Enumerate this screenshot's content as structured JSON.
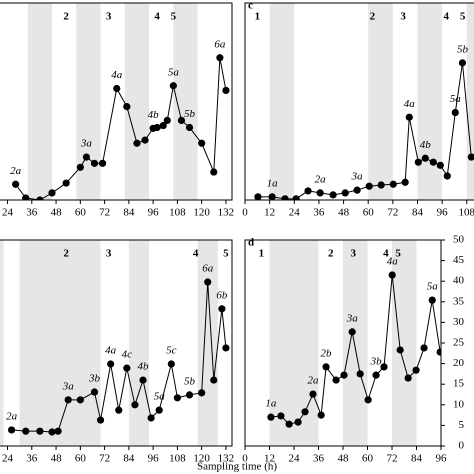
{
  "chart_data": [
    {
      "type": "line",
      "color": "#000000",
      "band_color": "#e6e6e6",
      "x": [
        28,
        33,
        40,
        46,
        53,
        60,
        63,
        67,
        71,
        78,
        83,
        88,
        92,
        96,
        98,
        101,
        103,
        106,
        110,
        114,
        120,
        126,
        129,
        132
      ],
      "values": [
        4,
        0.5,
        0,
        1.8,
        4.3,
        8.3,
        10.9,
        9.3,
        9.3,
        28.3,
        23.7,
        14.4,
        15.2,
        18.2,
        18.4,
        18.9,
        20.2,
        29,
        20.2,
        18.4,
        14.4,
        7.1,
        36.1,
        27.8
      ],
      "point_labels": [
        {
          "index": 0,
          "text": "2a"
        },
        {
          "index": 6,
          "text": "3a"
        },
        {
          "index": 9,
          "text": "4a"
        },
        {
          "index": 13,
          "text": "4b"
        },
        {
          "index": 17,
          "text": "5a"
        },
        {
          "index": 19,
          "text": "5b"
        },
        {
          "index": 22,
          "text": "6a"
        }
      ],
      "phases": [
        {
          "x": 53,
          "label": "2"
        },
        {
          "x": 74,
          "label": "3"
        },
        {
          "x": 98,
          "label": "4"
        },
        {
          "x": 106,
          "label": "5"
        }
      ],
      "bands": [
        [
          34,
          46
        ],
        [
          58,
          70
        ],
        [
          82,
          94
        ],
        [
          106,
          118
        ]
      ],
      "xlim": [
        0,
        135
      ],
      "xticks": [
        24,
        36,
        48,
        60,
        72,
        84,
        96,
        108,
        120,
        132
      ],
      "ylim": [
        0,
        50
      ]
    },
    {
      "type": "line",
      "title": "c",
      "color": "#000000",
      "band_color": "#e6e6e6",
      "x": [
        6.3,
        13.2,
        19.5,
        24.9,
        30.7,
        36.6,
        42.9,
        48.8,
        54.6,
        60.5,
        66.3,
        72.2,
        78,
        80,
        84.4,
        87.8,
        91.7,
        95.1,
        98.5,
        102.4,
        105.9,
        110.2,
        113
      ],
      "values": [
        0.8,
        0.8,
        0.3,
        0.3,
        2.3,
        1.8,
        1.3,
        1.8,
        2.5,
        3.5,
        3.8,
        4,
        4.5,
        21,
        9.6,
        10.6,
        9.6,
        8.8,
        6.1,
        22.2,
        34.8,
        10.9,
        11.4
      ],
      "point_labels": [
        {
          "index": 1,
          "text": "1a"
        },
        {
          "index": 5,
          "text": "2a"
        },
        {
          "index": 8,
          "text": "3a"
        },
        {
          "index": 13,
          "text": "4a"
        },
        {
          "index": 15,
          "text": "4b"
        },
        {
          "index": 19,
          "text": "5a"
        },
        {
          "index": 20,
          "text": "5b"
        }
      ],
      "phases": [
        {
          "x": 6,
          "label": "1"
        },
        {
          "x": 62,
          "label": "2"
        },
        {
          "x": 77,
          "label": "3"
        },
        {
          "x": 98,
          "label": "4"
        },
        {
          "x": 106,
          "label": "5"
        }
      ],
      "bands": [
        [
          12,
          24
        ],
        [
          60,
          72
        ],
        [
          84,
          96
        ],
        [
          108,
          120
        ]
      ],
      "xlim": [
        0,
        112
      ],
      "xticks": [
        0,
        12,
        24,
        36,
        48,
        60,
        72,
        84,
        96,
        108
      ],
      "ylim": [
        0,
        50
      ]
    },
    {
      "type": "line",
      "color": "#000000",
      "band_color": "#e6e6e6",
      "xlabel": "Sampling time (h)",
      "x": [
        26,
        33,
        40,
        46,
        49,
        54,
        60,
        67,
        70,
        75,
        79,
        83,
        87,
        91,
        95,
        99,
        105,
        108,
        114,
        120,
        123,
        126,
        130,
        132
      ],
      "values": [
        3.9,
        3.6,
        3.6,
        3.4,
        3.6,
        11.2,
        11.2,
        13.1,
        6.3,
        19.9,
        8.7,
        18.9,
        10,
        16,
        6.8,
        8.7,
        19.9,
        11.7,
        12.4,
        12.9,
        39.8,
        16,
        33.3,
        23.8
      ],
      "point_labels": [
        {
          "index": 0,
          "text": "2a"
        },
        {
          "index": 5,
          "text": "3a"
        },
        {
          "index": 7,
          "text": "3b"
        },
        {
          "index": 9,
          "text": "4a"
        },
        {
          "index": 11,
          "text": "4c"
        },
        {
          "index": 13,
          "text": "4b"
        },
        {
          "index": 15,
          "text": "5a"
        },
        {
          "index": 16,
          "text": "5c"
        },
        {
          "index": 18,
          "text": "5b"
        },
        {
          "index": 20,
          "text": "6a"
        },
        {
          "index": 22,
          "text": "6b"
        }
      ],
      "phases": [
        {
          "x": 53,
          "label": "2"
        },
        {
          "x": 74,
          "label": "3"
        },
        {
          "x": 117,
          "label": "4"
        },
        {
          "x": 132,
          "label": "5"
        }
      ],
      "bands": [
        [
          0,
          22
        ],
        [
          30,
          70
        ],
        [
          84,
          94
        ],
        [
          118,
          128
        ]
      ],
      "xlim": [
        0,
        135
      ],
      "xticks": [
        24,
        36,
        48,
        60,
        72,
        84,
        96,
        108,
        120,
        132
      ],
      "ylim": [
        0,
        50
      ]
    },
    {
      "type": "line",
      "title": "d",
      "color": "#000000",
      "band_color": "#e6e6e6",
      "x": [
        12.7,
        17.6,
        21.6,
        26,
        29.4,
        33.3,
        37.3,
        39.7,
        44.6,
        48.5,
        52.5,
        56.4,
        60.3,
        64.2,
        68.1,
        72.1,
        76,
        79.9,
        83.8,
        87.7,
        91.7,
        95.6
      ],
      "values": [
        7,
        7.3,
        5.3,
        5.8,
        8.3,
        12.6,
        7.5,
        19.2,
        16,
        17.2,
        27.7,
        17.5,
        11.2,
        17.2,
        19.2,
        41.5,
        23.3,
        16.5,
        18.4,
        23.8,
        35.4,
        22.8
      ],
      "point_labels": [
        {
          "index": 0,
          "text": "1a"
        },
        {
          "index": 5,
          "text": "2a"
        },
        {
          "index": 7,
          "text": "2b"
        },
        {
          "index": 10,
          "text": "3a"
        },
        {
          "index": 13,
          "text": "3b"
        },
        {
          "index": 15,
          "text": "4a"
        },
        {
          "index": 20,
          "text": "5a"
        }
      ],
      "phases": [
        {
          "x": 8,
          "label": "1"
        },
        {
          "x": 42,
          "label": "2"
        },
        {
          "x": 53,
          "label": "3"
        },
        {
          "x": 69,
          "label": "4"
        },
        {
          "x": 75,
          "label": "5"
        }
      ],
      "bands": [
        [
          12,
          36
        ],
        [
          48,
          60
        ],
        [
          72,
          84
        ]
      ],
      "xlim": [
        0,
        96
      ],
      "xticks": [
        0,
        12,
        24,
        36,
        48,
        60,
        72,
        84,
        96
      ],
      "ylim": [
        0,
        50
      ],
      "yticks": [
        0,
        5,
        10,
        15,
        20,
        25,
        30,
        35,
        40,
        45,
        50
      ]
    }
  ]
}
